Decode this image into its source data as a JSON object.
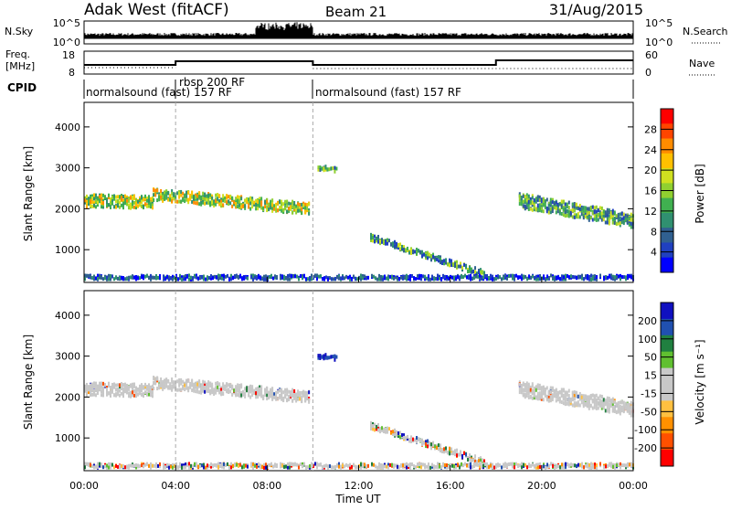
{
  "header": {
    "station": "Adak West (fitACF)",
    "beam": "Beam 21",
    "date": "31/Aug/2015"
  },
  "panels": {
    "nsky": {
      "left_label": "N.Sky",
      "right_label": "N.Search",
      "left_ticks": [
        "10^5",
        "10^0"
      ],
      "right_ticks": [
        "10^5",
        "10^0"
      ]
    },
    "freq": {
      "left_label_1": "Freq.",
      "left_label_2": "[MHz]",
      "right_label": "Nave",
      "left_ticks": [
        "18",
        "8"
      ],
      "right_ticks": [
        "60",
        "0"
      ]
    },
    "cpid": {
      "label": "CPID",
      "segments": [
        "normalsound (fast) 157 RF",
        "rbsp 200 RF",
        "normalsound (fast) 157 RF"
      ]
    }
  },
  "power_colorbar": {
    "label": "Power [dB]",
    "ticks": [
      "28",
      "24",
      "20",
      "16",
      "12",
      "8",
      "4"
    ],
    "colors": [
      "#ff0000",
      "#ff4500",
      "#ff8c00",
      "#ffc000",
      "#d0e020",
      "#90d030",
      "#40b050",
      "#309070",
      "#306090",
      "#2040c0",
      "#0000ff"
    ]
  },
  "velocity_colorbar": {
    "label": "Velocity [m s⁻¹]",
    "ticks": [
      "200",
      "100",
      "50",
      "15",
      "-15",
      "-50",
      "-100",
      "-200"
    ],
    "colors": [
      "#1010c0",
      "#2050b0",
      "#208040",
      "#60c030",
      "#c8c8c8",
      "#c8c8c8",
      "#ffc040",
      "#ff9000",
      "#ff5000",
      "#ff0000"
    ]
  },
  "axes": {
    "ylabel": "Slant Range [km]",
    "xlabel": "Time UT",
    "xticks": [
      "00:00",
      "04:00",
      "08:00",
      "12:00",
      "16:00",
      "20:00",
      "00:00"
    ],
    "yticks": [
      "4000",
      "3000",
      "2000",
      "1000"
    ]
  },
  "chart_data": {
    "type": "heatmap",
    "x_range_hours": [
      0,
      24
    ],
    "y_range_km": [
      200,
      4600
    ],
    "cpid_switch_hours": [
      4,
      10
    ],
    "freq_step_hours": [
      4,
      10,
      18
    ],
    "scatter_bands": [
      {
        "t": [
          0,
          3.0
        ],
        "center_km": [
          2200,
          2150
        ],
        "width_km": 300,
        "power": "high",
        "velocity": "low"
      },
      {
        "t": [
          3.0,
          9.8
        ],
        "center_km": [
          2350,
          2000
        ],
        "width_km": 280,
        "power": "high",
        "velocity": "low"
      },
      {
        "t": [
          10.2,
          11.0
        ],
        "center_km": [
          3000,
          2950
        ],
        "width_km": 120,
        "power": "medium",
        "velocity": "positive"
      },
      {
        "t": [
          12.5,
          17.5
        ],
        "center_km": [
          1300,
          400
        ],
        "width_km": 150,
        "power": "medium",
        "velocity": "mixed"
      },
      {
        "t": [
          19.0,
          24.0
        ],
        "center_km": [
          2200,
          1700
        ],
        "width_km": 350,
        "power": "medium",
        "velocity": "low"
      },
      {
        "t": [
          0,
          24.0
        ],
        "center_km": [
          320,
          320
        ],
        "width_km": 100,
        "power": "low",
        "velocity": "mixed"
      }
    ]
  }
}
